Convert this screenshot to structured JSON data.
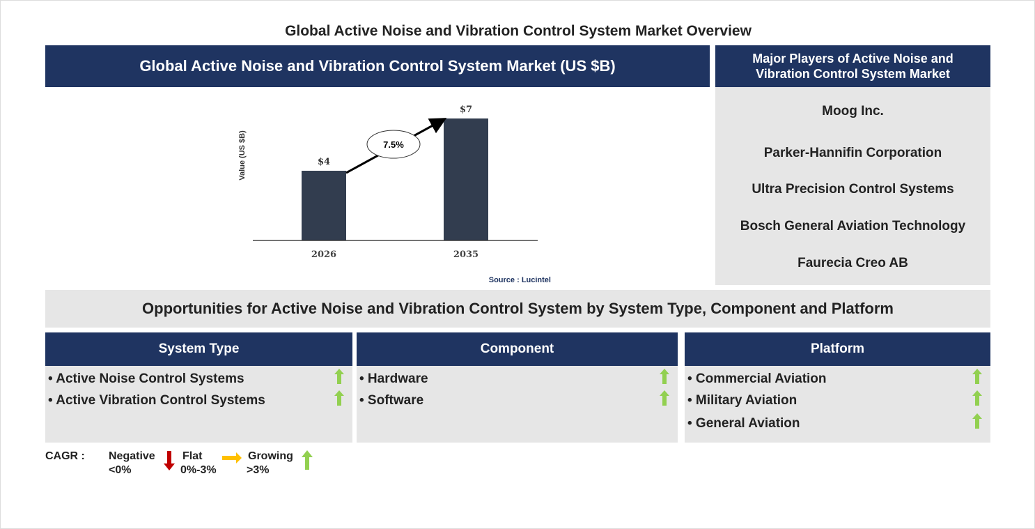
{
  "title": "Global Active Noise and Vibration Control System Market Overview",
  "chart_panel": {
    "header": "Global Active Noise and Vibration Control System Market (US $B)",
    "source": "Source : Lucintel"
  },
  "chart_data": {
    "type": "bar",
    "categories": [
      "2026",
      "2035"
    ],
    "values": [
      4,
      7
    ],
    "data_labels": [
      "$4",
      "$7"
    ],
    "ylabel": "Value (US $B)",
    "annotation": "7.5%",
    "bar_color": "#323d4f"
  },
  "players": {
    "header": "Major Players of Active Noise and Vibration Control System Market",
    "items": [
      "Moog Inc.",
      "Parker-Hannifin Corporation",
      "Ultra Precision Control Systems",
      "Bosch General Aviation Technology",
      "Faurecia Creo AB"
    ]
  },
  "opportunities": {
    "header": "Opportunities for Active Noise and Vibration Control System by System Type, Component and Platform",
    "columns": [
      {
        "title": "System Type",
        "items": [
          "• Active Noise Control Systems",
          "• Active Vibration Control Systems"
        ],
        "trend": [
          "up",
          "up"
        ]
      },
      {
        "title": "Component",
        "items": [
          "• Hardware",
          "• Software"
        ],
        "trend": [
          "up",
          "up"
        ]
      },
      {
        "title": "Platform",
        "items": [
          "• Commercial Aviation",
          "• Military Aviation",
          "• General Aviation"
        ],
        "trend": [
          "up",
          "up",
          "up"
        ]
      }
    ]
  },
  "legend": {
    "label": "CAGR :",
    "negative": {
      "name": "Negative",
      "range": "<0%",
      "color": "#c00000"
    },
    "flat": {
      "name": "Flat",
      "range": "0%-3%",
      "color": "#ffc000"
    },
    "growing": {
      "name": "Growing",
      "range": ">3%",
      "color": "#92d050"
    }
  },
  "colors": {
    "navy": "#1f3461",
    "panel_gray": "#e6e6e6"
  }
}
